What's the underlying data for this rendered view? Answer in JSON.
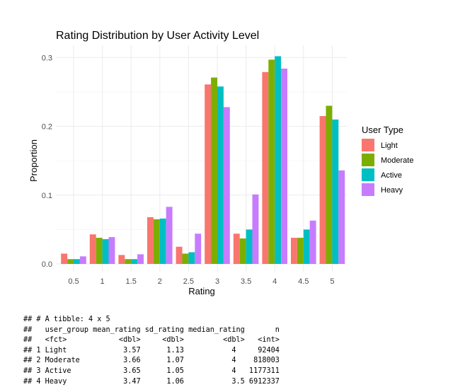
{
  "chart_data": {
    "type": "bar",
    "title": "Rating Distribution by User Activity Level",
    "xlabel": "Rating",
    "ylabel": "Proportion",
    "categories": [
      "0.5",
      "1",
      "1.5",
      "2",
      "2.5",
      "3",
      "3.5",
      "4",
      "4.5",
      "5"
    ],
    "yticks": [
      "0.0",
      "0.1",
      "0.2",
      "0.3"
    ],
    "ylim": [
      0,
      0.32
    ],
    "grid": true,
    "legend": {
      "title": "User Type",
      "position": "right"
    },
    "series": [
      {
        "name": "Light",
        "color": "#F8766D",
        "values": [
          0.015,
          0.043,
          0.013,
          0.068,
          0.025,
          0.261,
          0.044,
          0.279,
          0.038,
          0.215
        ]
      },
      {
        "name": "Moderate",
        "color": "#7CAE00",
        "values": [
          0.007,
          0.038,
          0.007,
          0.065,
          0.015,
          0.271,
          0.037,
          0.297,
          0.038,
          0.23
        ]
      },
      {
        "name": "Active",
        "color": "#00BFC4",
        "values": [
          0.007,
          0.036,
          0.007,
          0.066,
          0.017,
          0.258,
          0.05,
          0.302,
          0.05,
          0.21
        ]
      },
      {
        "name": "Heavy",
        "color": "#C77CFF",
        "values": [
          0.011,
          0.039,
          0.014,
          0.083,
          0.044,
          0.228,
          0.101,
          0.284,
          0.063,
          0.136
        ]
      }
    ]
  },
  "console": {
    "lines": [
      "## # A tibble: 4 x 5",
      "##   user_group mean_rating sd_rating median_rating       n",
      "##   <fct>            <dbl>     <dbl>         <dbl>   <int>",
      "## 1 Light             3.57      1.13           4     92404",
      "## 2 Moderate          3.66      1.07           4    818003",
      "## 3 Active            3.65      1.05           4   1177311",
      "## 4 Heavy             3.47      1.06           3.5 6912337"
    ]
  }
}
